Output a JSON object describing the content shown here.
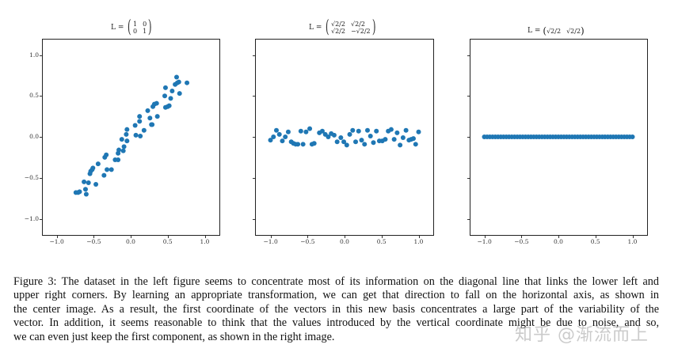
{
  "figure": {
    "caption_lines": [
      "Figure 3: The dataset in the left figure seems to concentrate most of its information on the diagonal line that links the lower left and",
      "upper right corners.  By learning an appropriate transformation, we can get that direction to fall on the horizontal axis, as shown in",
      "the center image.  As a result, the first coordinate of the vectors in this new basis concentrates a large part of the variability of the",
      "vector. In addition, it seems reasonable to think that the values introduced by the vertical coordinate might be due to noise, and so,",
      "we can even just keep the first component, as shown in the right image."
    ],
    "watermark": "知乎 @渐流而上"
  },
  "chart_data": [
    {
      "type": "scatter",
      "title": "L = (1 0; 0 1)",
      "title_matrix": {
        "prefix": "L =",
        "rows": [
          [
            "1",
            "0"
          ],
          [
            "0",
            "1"
          ]
        ]
      },
      "xlabel": "",
      "ylabel": "",
      "xlim": [
        -1.2,
        1.2
      ],
      "ylim": [
        -1.2,
        1.2
      ],
      "xticks": [
        "−1.0",
        "−0.5",
        "0.0",
        "0.5",
        "1.0"
      ],
      "yticks": [
        "1.0",
        "0.5",
        "0.0",
        "−0.5",
        "−1.0"
      ],
      "grid": false,
      "color": "#1f77b4",
      "points": [
        [
          -0.74,
          -0.68
        ],
        [
          -0.71,
          -0.68
        ],
        [
          -0.69,
          -0.67
        ],
        [
          -0.63,
          -0.55
        ],
        [
          -0.61,
          -0.64
        ],
        [
          -0.6,
          -0.7
        ],
        [
          -0.57,
          -0.56
        ],
        [
          -0.55,
          -0.45
        ],
        [
          -0.54,
          -0.42
        ],
        [
          -0.52,
          -0.4
        ],
        [
          -0.51,
          -0.38
        ],
        [
          -0.47,
          -0.58
        ],
        [
          -0.44,
          -0.33
        ],
        [
          -0.36,
          -0.47
        ],
        [
          -0.35,
          -0.25
        ],
        [
          -0.33,
          -0.22
        ],
        [
          -0.32,
          -0.4
        ],
        [
          -0.26,
          -0.4
        ],
        [
          -0.21,
          -0.28
        ],
        [
          -0.17,
          -0.28
        ],
        [
          -0.17,
          -0.2
        ],
        [
          -0.16,
          -0.16
        ],
        [
          -0.12,
          -0.03
        ],
        [
          -0.1,
          -0.17
        ],
        [
          -0.09,
          -0.12
        ],
        [
          -0.06,
          0.03
        ],
        [
          -0.05,
          -0.05
        ],
        [
          -0.05,
          0.09
        ],
        [
          0.06,
          0.14
        ],
        [
          0.07,
          0.02
        ],
        [
          0.12,
          0.25
        ],
        [
          0.12,
          0.19
        ],
        [
          0.13,
          0.01
        ],
        [
          0.18,
          0.08
        ],
        [
          0.23,
          0.32
        ],
        [
          0.26,
          0.23
        ],
        [
          0.28,
          0.15
        ],
        [
          0.29,
          0.15
        ],
        [
          0.3,
          0.37
        ],
        [
          0.32,
          0.4
        ],
        [
          0.35,
          0.41
        ],
        [
          0.36,
          0.25
        ],
        [
          0.46,
          0.5
        ],
        [
          0.47,
          0.6
        ],
        [
          0.47,
          0.36
        ],
        [
          0.5,
          0.37
        ],
        [
          0.52,
          0.38
        ],
        [
          0.54,
          0.47
        ],
        [
          0.56,
          0.56
        ],
        [
          0.6,
          0.64
        ],
        [
          0.62,
          0.73
        ],
        [
          0.63,
          0.66
        ],
        [
          0.65,
          0.67
        ],
        [
          0.66,
          0.53
        ],
        [
          0.76,
          0.66
        ]
      ]
    },
    {
      "type": "scatter",
      "title": "L = (√2/2 √2/2; √2/2 −√2/2)",
      "title_matrix": {
        "prefix": "L =",
        "rows": [
          [
            "√2/2",
            "√2/2"
          ],
          [
            "√2/2",
            "−√2/2"
          ]
        ]
      },
      "xlabel": "",
      "ylabel": "",
      "xlim": [
        -1.2,
        1.2
      ],
      "ylim": [
        -1.2,
        1.2
      ],
      "xticks": [
        "−1.0",
        "−0.5",
        "0.0",
        "0.5",
        "1.0"
      ],
      "yticks": [],
      "grid": false,
      "color": "#1f77b4",
      "points": [
        [
          -1.0,
          -0.04
        ],
        [
          -0.96,
          0.0
        ],
        [
          -0.92,
          0.08
        ],
        [
          -0.88,
          0.03
        ],
        [
          -0.84,
          -0.05
        ],
        [
          -0.8,
          0.0
        ],
        [
          -0.76,
          0.06
        ],
        [
          -0.72,
          -0.06
        ],
        [
          -0.69,
          -0.08
        ],
        [
          -0.66,
          -0.09
        ],
        [
          -0.63,
          -0.09
        ],
        [
          -0.59,
          0.07
        ],
        [
          -0.56,
          -0.09
        ],
        [
          -0.52,
          0.06
        ],
        [
          -0.47,
          0.1
        ],
        [
          -0.44,
          -0.09
        ],
        [
          -0.41,
          -0.08
        ],
        [
          -0.34,
          0.05
        ],
        [
          -0.3,
          0.07
        ],
        [
          -0.26,
          0.03
        ],
        [
          -0.22,
          0.0
        ],
        [
          -0.18,
          0.04
        ],
        [
          -0.14,
          0.02
        ],
        [
          -0.1,
          -0.06
        ],
        [
          -0.05,
          -0.01
        ],
        [
          -0.01,
          -0.06
        ],
        [
          0.03,
          -0.1
        ],
        [
          0.07,
          0.03
        ],
        [
          0.11,
          0.08
        ],
        [
          0.15,
          -0.06
        ],
        [
          0.19,
          0.07
        ],
        [
          0.23,
          -0.04
        ],
        [
          0.27,
          -0.09
        ],
        [
          0.31,
          0.08
        ],
        [
          0.35,
          0.01
        ],
        [
          0.39,
          -0.07
        ],
        [
          0.43,
          0.07
        ],
        [
          0.47,
          -0.05
        ],
        [
          0.51,
          -0.05
        ],
        [
          0.55,
          -0.03
        ],
        [
          0.59,
          0.07
        ],
        [
          0.63,
          0.09
        ],
        [
          0.67,
          -0.03
        ],
        [
          0.71,
          0.05
        ],
        [
          0.75,
          -0.1
        ],
        [
          0.79,
          -0.01
        ],
        [
          0.83,
          0.08
        ],
        [
          0.87,
          -0.04
        ],
        [
          0.9,
          -0.03
        ],
        [
          0.93,
          -0.02
        ],
        [
          0.96,
          -0.09
        ],
        [
          1.0,
          0.06
        ]
      ]
    },
    {
      "type": "scatter",
      "title": "L = (√2/2 √2/2)",
      "title_matrix": {
        "prefix": "L =",
        "rows": [
          [
            "√2/2",
            "√2/2"
          ]
        ]
      },
      "xlabel": "",
      "ylabel": "",
      "xlim": [
        -1.2,
        1.2
      ],
      "ylim": [
        -1.2,
        1.2
      ],
      "xticks": [
        "−1.0",
        "−0.5",
        "0.0",
        "0.5",
        "1.0"
      ],
      "yticks": [],
      "grid": false,
      "color": "#1f77b4",
      "points_x_range": [
        -1.0,
        1.0
      ],
      "points_count": 55,
      "points_y": 0.0
    }
  ]
}
